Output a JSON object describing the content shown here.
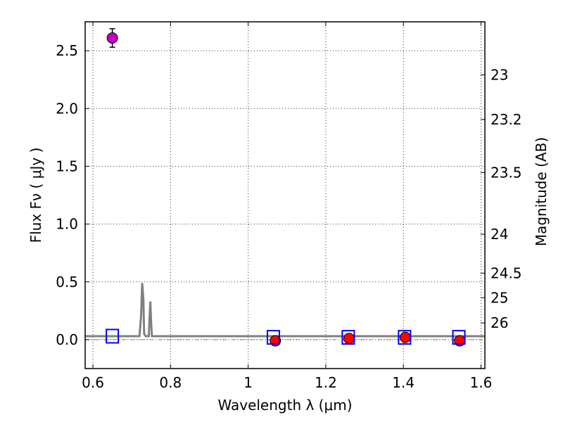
{
  "chart_data": {
    "type": "scatter",
    "xlabel": "Wavelength  λ (μm)",
    "ylabel": "Flux  Fν  ( μJy )",
    "y2label": "Magnitude (AB)",
    "xlim": [
      0.58,
      1.61
    ],
    "ylim": [
      -0.25,
      2.75
    ],
    "x_ticks": [
      0.6,
      0.8,
      1.0,
      1.2,
      1.4,
      1.6
    ],
    "x_tick_labels": [
      "0.6",
      "0.8",
      "1",
      "1.2",
      "1.4",
      "1.6"
    ],
    "y_ticks": [
      0.0,
      0.5,
      1.0,
      1.5,
      2.0,
      2.5
    ],
    "y_tick_labels": [
      "0.0",
      "0.5",
      "1.0",
      "1.5",
      "2.0",
      "2.5"
    ],
    "y2_ticks": [
      23,
      23.2,
      23.5,
      24,
      24.5,
      25,
      26
    ],
    "y2_tick_labels": [
      "23",
      "23.2",
      "23.5",
      "24",
      "24.5",
      "25",
      "26"
    ],
    "grid": true,
    "series": [
      {
        "marker": "circle",
        "color": "#bf00bf",
        "points": [
          {
            "x": 0.65,
            "y": 2.61,
            "err": 0.08
          }
        ]
      },
      {
        "marker": "circle",
        "color": "#ff0000",
        "points": [
          {
            "x": 1.07,
            "y": -0.01,
            "err": 0.02
          },
          {
            "x": 1.26,
            "y": 0.01,
            "err": 0.02
          },
          {
            "x": 1.405,
            "y": 0.02,
            "err": 0.02
          },
          {
            "x": 1.545,
            "y": -0.01,
            "err": 0.02
          }
        ]
      },
      {
        "marker": "open-square",
        "color": "#0000ff",
        "points": [
          {
            "x": 0.65,
            "y": 0.03
          },
          {
            "x": 1.065,
            "y": 0.02
          },
          {
            "x": 1.258,
            "y": 0.02
          },
          {
            "x": 1.403,
            "y": 0.02
          },
          {
            "x": 1.543,
            "y": 0.02
          }
        ]
      },
      {
        "type": "line",
        "color": "#808080",
        "points": [
          [
            0.58,
            0.03
          ],
          [
            0.72,
            0.03
          ],
          [
            0.724,
            0.2
          ],
          [
            0.727,
            0.49
          ],
          [
            0.73,
            0.35
          ],
          [
            0.732,
            0.05
          ],
          [
            0.736,
            0.03
          ],
          [
            0.744,
            0.03
          ],
          [
            0.746,
            0.2
          ],
          [
            0.748,
            0.33
          ],
          [
            0.75,
            0.15
          ],
          [
            0.752,
            0.03
          ],
          [
            1.61,
            0.03
          ]
        ]
      }
    ],
    "baseline": {
      "y": 0.0,
      "style": "dash-dot",
      "color": "#808080"
    }
  }
}
